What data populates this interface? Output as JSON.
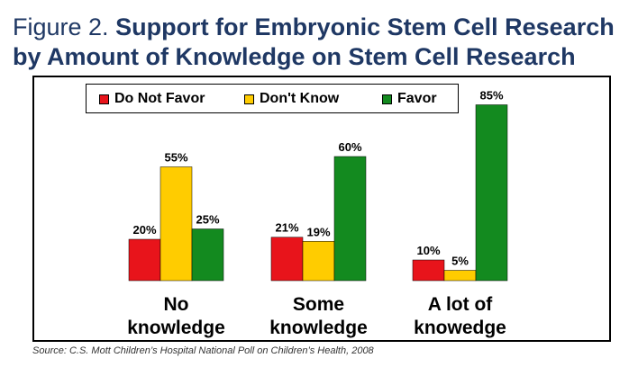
{
  "title": {
    "prefix": "Figure 2.",
    "bold_line1": "Support for Embryonic Stem Cell Research",
    "bold_line2": "by Amount of Knowledge on Stem Cell Research"
  },
  "source": "Source: C.S. Mott Children’s Hospital National Poll on Children’s Health, 2008",
  "chart_data": {
    "type": "bar",
    "categories": [
      [
        "No",
        "knowledge"
      ],
      [
        "Some",
        "knowledge"
      ],
      [
        "A lot of",
        "knowedge"
      ]
    ],
    "series": [
      {
        "name": "Do Not Favor",
        "color": "#e8141b",
        "values": [
          20,
          21,
          10
        ],
        "labels": [
          "20%",
          "21%",
          "10%"
        ]
      },
      {
        "name": "Don't Know",
        "color": "#ffcc00",
        "values": [
          55,
          19,
          5
        ],
        "labels": [
          "55%",
          "19%",
          "5%"
        ]
      },
      {
        "name": "Favor",
        "color": "#138a1f",
        "values": [
          25,
          60,
          85
        ],
        "labels": [
          "25%",
          "60%",
          "85%"
        ]
      }
    ],
    "ylim": [
      0,
      100
    ],
    "legend": "top-left",
    "grid": false,
    "colors": {
      "title": "#1f3864"
    }
  }
}
